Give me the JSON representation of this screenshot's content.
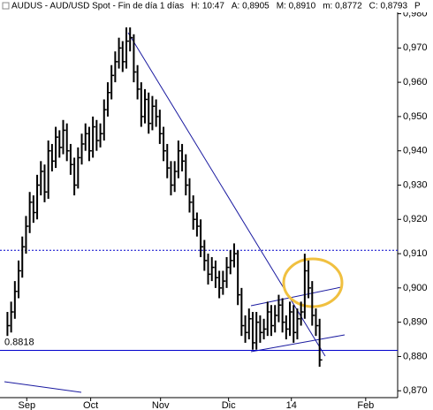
{
  "chart_data": {
    "type": "ohlc",
    "title": "AUDUS - AUD/USD Spot - Fin de día 1 días",
    "info": [
      "H: 10:47",
      "A: 0,8905",
      "M: 0,8910",
      "m: 0,8772",
      "C: 0,8793",
      "P"
    ],
    "color": "#000000",
    "xlim": [
      -2,
      105
    ],
    "xticks": [
      {
        "value": 5.2,
        "label": "Sep"
      },
      {
        "value": 22.4,
        "label": "Oct"
      },
      {
        "value": 41.2,
        "label": "Nov"
      },
      {
        "value": 59.5,
        "label": "Dic"
      },
      {
        "value": 76.4,
        "label": "14"
      },
      {
        "value": 96.4,
        "label": "Feb"
      }
    ],
    "ylim": [
      0.868,
      0.984
    ],
    "yticks": [
      {
        "value": 0.87,
        "label": "0,870"
      },
      {
        "value": 0.88,
        "label": "0,880"
      },
      {
        "value": 0.89,
        "label": "0,890"
      },
      {
        "value": 0.9,
        "label": "0,900"
      },
      {
        "value": 0.91,
        "label": "0,910"
      },
      {
        "value": 0.92,
        "label": "0,920"
      },
      {
        "value": 0.93,
        "label": "0,930"
      },
      {
        "value": 0.94,
        "label": "0,940"
      },
      {
        "value": 0.95,
        "label": "0,950"
      },
      {
        "value": 0.96,
        "label": "0,960"
      },
      {
        "value": 0.97,
        "label": "0,970"
      },
      {
        "value": 0.98,
        "label": "0,980"
      }
    ],
    "support": {
      "value": 0.8818,
      "color": "#0000cc"
    },
    "resistance": {
      "value": 0.911,
      "color": "#0000cc"
    },
    "high": [
      0.893,
      0.896,
      0.902,
      0.908,
      0.915,
      0.921,
      0.928,
      0.927,
      0.933,
      0.937,
      0.936,
      0.943,
      0.942,
      0.947,
      0.946,
      0.949,
      0.948,
      0.942,
      0.938,
      0.941,
      0.945,
      0.948,
      0.947,
      0.95,
      0.949,
      0.948,
      0.955,
      0.96,
      0.965,
      0.969,
      0.973,
      0.972,
      0.976,
      0.976,
      0.974,
      0.965,
      0.96,
      0.958,
      0.957,
      0.956,
      0.955,
      0.952,
      0.947,
      0.942,
      0.937,
      0.937,
      0.943,
      0.942,
      0.939,
      0.932,
      0.927,
      0.922,
      0.92,
      0.914,
      0.91,
      0.909,
      0.908,
      0.905,
      0.905,
      0.909,
      0.911,
      0.913,
      0.911,
      0.9,
      0.892,
      0.894,
      0.893,
      0.893,
      0.892,
      0.891,
      0.896,
      0.895,
      0.895,
      0.898,
      0.897,
      0.892,
      0.896,
      0.895,
      0.894,
      0.896,
      0.91,
      0.908,
      0.902,
      0.894,
      0.891
    ],
    "low": [
      0.886,
      0.887,
      0.891,
      0.897,
      0.903,
      0.91,
      0.916,
      0.919,
      0.92,
      0.927,
      0.925,
      0.926,
      0.934,
      0.935,
      0.938,
      0.939,
      0.937,
      0.933,
      0.927,
      0.929,
      0.936,
      0.94,
      0.937,
      0.938,
      0.94,
      0.941,
      0.943,
      0.95,
      0.955,
      0.96,
      0.964,
      0.963,
      0.964,
      0.969,
      0.96,
      0.955,
      0.947,
      0.948,
      0.945,
      0.946,
      0.947,
      0.942,
      0.937,
      0.932,
      0.927,
      0.928,
      0.932,
      0.934,
      0.927,
      0.922,
      0.917,
      0.915,
      0.909,
      0.905,
      0.901,
      0.902,
      0.9,
      0.897,
      0.898,
      0.9,
      0.904,
      0.906,
      0.895,
      0.886,
      0.884,
      0.885,
      0.882,
      0.882,
      0.884,
      0.885,
      0.886,
      0.886,
      0.887,
      0.89,
      0.887,
      0.885,
      0.886,
      0.884,
      0.885,
      0.889,
      0.891,
      0.897,
      0.889,
      0.886,
      0.877
    ],
    "close": [
      0.889,
      0.893,
      0.899,
      0.905,
      0.912,
      0.918,
      0.925,
      0.922,
      0.93,
      0.934,
      0.928,
      0.94,
      0.937,
      0.944,
      0.941,
      0.946,
      0.94,
      0.936,
      0.93,
      0.938,
      0.942,
      0.945,
      0.94,
      0.947,
      0.943,
      0.945,
      0.952,
      0.957,
      0.962,
      0.966,
      0.97,
      0.966,
      0.972,
      0.973,
      0.963,
      0.958,
      0.95,
      0.955,
      0.948,
      0.953,
      0.95,
      0.945,
      0.94,
      0.935,
      0.93,
      0.934,
      0.94,
      0.937,
      0.93,
      0.925,
      0.92,
      0.918,
      0.912,
      0.908,
      0.904,
      0.906,
      0.903,
      0.9,
      0.902,
      0.906,
      0.908,
      0.91,
      0.898,
      0.889,
      0.887,
      0.891,
      0.884,
      0.89,
      0.887,
      0.888,
      0.893,
      0.889,
      0.892,
      0.895,
      0.89,
      0.888,
      0.893,
      0.887,
      0.891,
      0.893,
      0.905,
      0.9,
      0.892,
      0.889,
      0.879
    ]
  }
}
